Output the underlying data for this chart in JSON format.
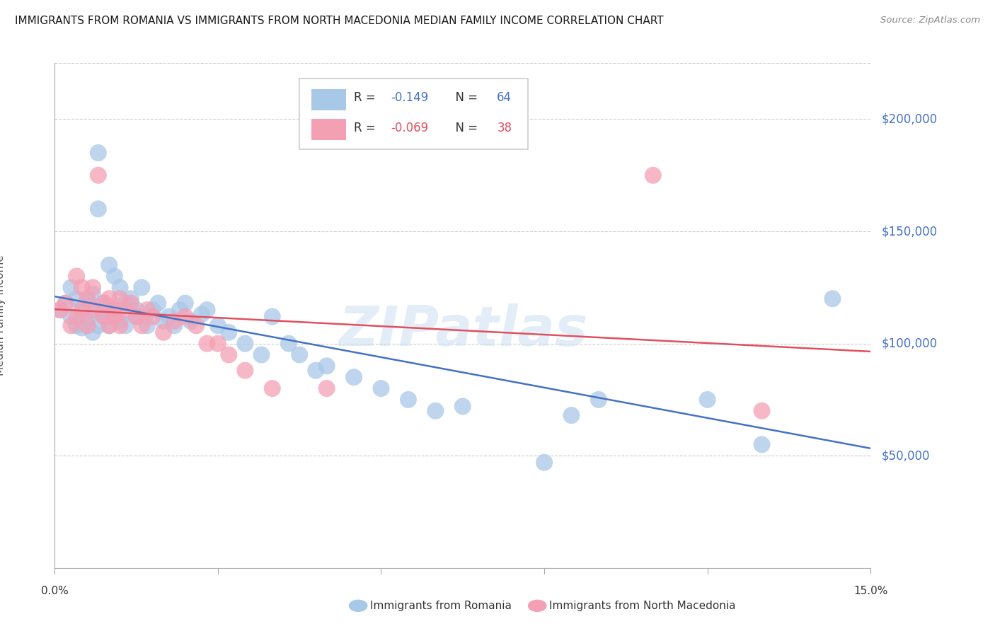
{
  "title": "IMMIGRANTS FROM ROMANIA VS IMMIGRANTS FROM NORTH MACEDONIA MEDIAN FAMILY INCOME CORRELATION CHART",
  "source": "Source: ZipAtlas.com",
  "ylabel": "Median Family Income",
  "ytick_labels": [
    "$50,000",
    "$100,000",
    "$150,000",
    "$200,000"
  ],
  "ytick_values": [
    50000,
    100000,
    150000,
    200000
  ],
  "ymin": 0,
  "ymax": 225000,
  "xmin": 0.0,
  "xmax": 0.15,
  "romania_color": "#a8c8e8",
  "macedonia_color": "#f4a0b4",
  "romania_line_color": "#4472c4",
  "macedonia_line_color": "#e05060",
  "watermark": "ZIPatlas",
  "romania_r": "-0.149",
  "romania_n": "64",
  "macedonia_r": "-0.069",
  "macedonia_n": "38",
  "romania_x": [
    0.001,
    0.002,
    0.003,
    0.003,
    0.004,
    0.004,
    0.005,
    0.005,
    0.005,
    0.006,
    0.006,
    0.007,
    0.007,
    0.007,
    0.008,
    0.008,
    0.008,
    0.009,
    0.009,
    0.009,
    0.01,
    0.01,
    0.01,
    0.011,
    0.011,
    0.012,
    0.012,
    0.013,
    0.013,
    0.014,
    0.015,
    0.015,
    0.016,
    0.017,
    0.018,
    0.019,
    0.02,
    0.021,
    0.022,
    0.023,
    0.024,
    0.025,
    0.027,
    0.028,
    0.03,
    0.032,
    0.035,
    0.038,
    0.04,
    0.043,
    0.045,
    0.048,
    0.05,
    0.055,
    0.06,
    0.065,
    0.07,
    0.075,
    0.09,
    0.095,
    0.1,
    0.12,
    0.13,
    0.143
  ],
  "romania_y": [
    115000,
    118000,
    112000,
    125000,
    108000,
    120000,
    113000,
    107000,
    116000,
    119000,
    110000,
    122000,
    105000,
    115000,
    185000,
    160000,
    108000,
    115000,
    112000,
    118000,
    135000,
    108000,
    112000,
    130000,
    115000,
    125000,
    110000,
    118000,
    108000,
    120000,
    115000,
    112000,
    125000,
    108000,
    115000,
    118000,
    110000,
    112000,
    108000,
    115000,
    118000,
    110000,
    113000,
    115000,
    108000,
    105000,
    100000,
    95000,
    112000,
    100000,
    95000,
    88000,
    90000,
    85000,
    80000,
    75000,
    70000,
    72000,
    47000,
    68000,
    75000,
    75000,
    55000,
    120000
  ],
  "macedonia_x": [
    0.001,
    0.002,
    0.003,
    0.004,
    0.004,
    0.005,
    0.005,
    0.006,
    0.006,
    0.007,
    0.007,
    0.008,
    0.009,
    0.009,
    0.01,
    0.01,
    0.011,
    0.011,
    0.012,
    0.012,
    0.013,
    0.014,
    0.015,
    0.016,
    0.017,
    0.018,
    0.02,
    0.022,
    0.024,
    0.026,
    0.028,
    0.03,
    0.032,
    0.035,
    0.04,
    0.05,
    0.11,
    0.13
  ],
  "macedonia_y": [
    115000,
    118000,
    108000,
    112000,
    130000,
    125000,
    115000,
    120000,
    108000,
    125000,
    115000,
    175000,
    118000,
    112000,
    120000,
    108000,
    115000,
    112000,
    120000,
    108000,
    115000,
    118000,
    112000,
    108000,
    115000,
    112000,
    105000,
    110000,
    112000,
    108000,
    100000,
    100000,
    95000,
    88000,
    80000,
    80000,
    175000,
    70000
  ],
  "xtick_positions": [
    0.0,
    0.03,
    0.06,
    0.09,
    0.12,
    0.15
  ],
  "xtick_labels": [
    "0.0%",
    "",
    "",
    "",
    "",
    "15.0%"
  ]
}
